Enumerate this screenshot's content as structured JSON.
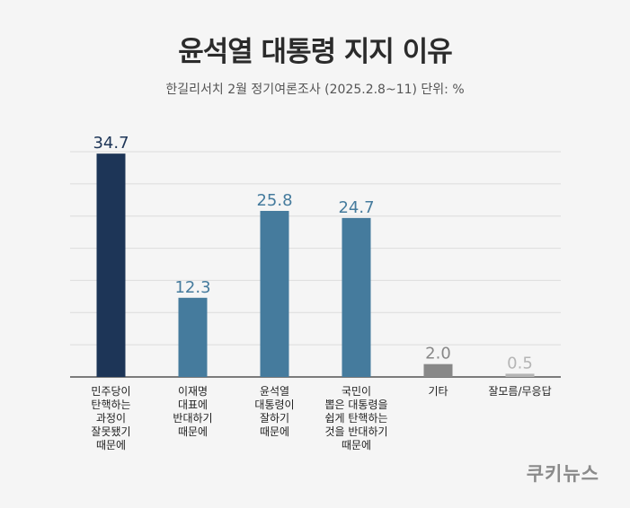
{
  "title": "윤석열 대통령 지지 이유",
  "subtitle": "한길리서치 2월 정기여론조사 (2025.2.8~11) 단위: %",
  "logo": "쿠키뉴스",
  "colors": {
    "dark": "#1d3557",
    "mid": "#457b9d",
    "gray": "#888888",
    "light": "#b5b5b5"
  },
  "chart_data": {
    "type": "bar",
    "title": "윤석열 대통령 지지 이유",
    "subtitle": "한길리서치 2월 정기여론조사 (2025.2.8~11) 단위: %",
    "categories": [
      "민주당이\n탄핵하는\n과정이\n잘못됐기\n때문에",
      "이재명\n대표에\n반대하기\n때문에",
      "윤석열\n대통령이\n잘하기\n때문에",
      "국민이\n뽑은 대통령을\n쉽게 탄핵하는\n것을 반대하기\n때문에",
      "기타",
      "잘모름/무응답"
    ],
    "values": [
      34.7,
      12.3,
      25.8,
      24.7,
      2.0,
      0.5
    ],
    "value_labels": [
      "34.7",
      "12.3",
      "25.8",
      "24.7",
      "2.0",
      "0.5"
    ],
    "bar_colors": [
      "#1d3557",
      "#457b9d",
      "#457b9d",
      "#457b9d",
      "#888888",
      "#b5b5b5"
    ],
    "label_colors": [
      "#1d3557",
      "#457b9d",
      "#457b9d",
      "#457b9d",
      "#888888",
      "#b5b5b5"
    ],
    "ylim": [
      0,
      35
    ],
    "grid": true,
    "legend": "none"
  }
}
